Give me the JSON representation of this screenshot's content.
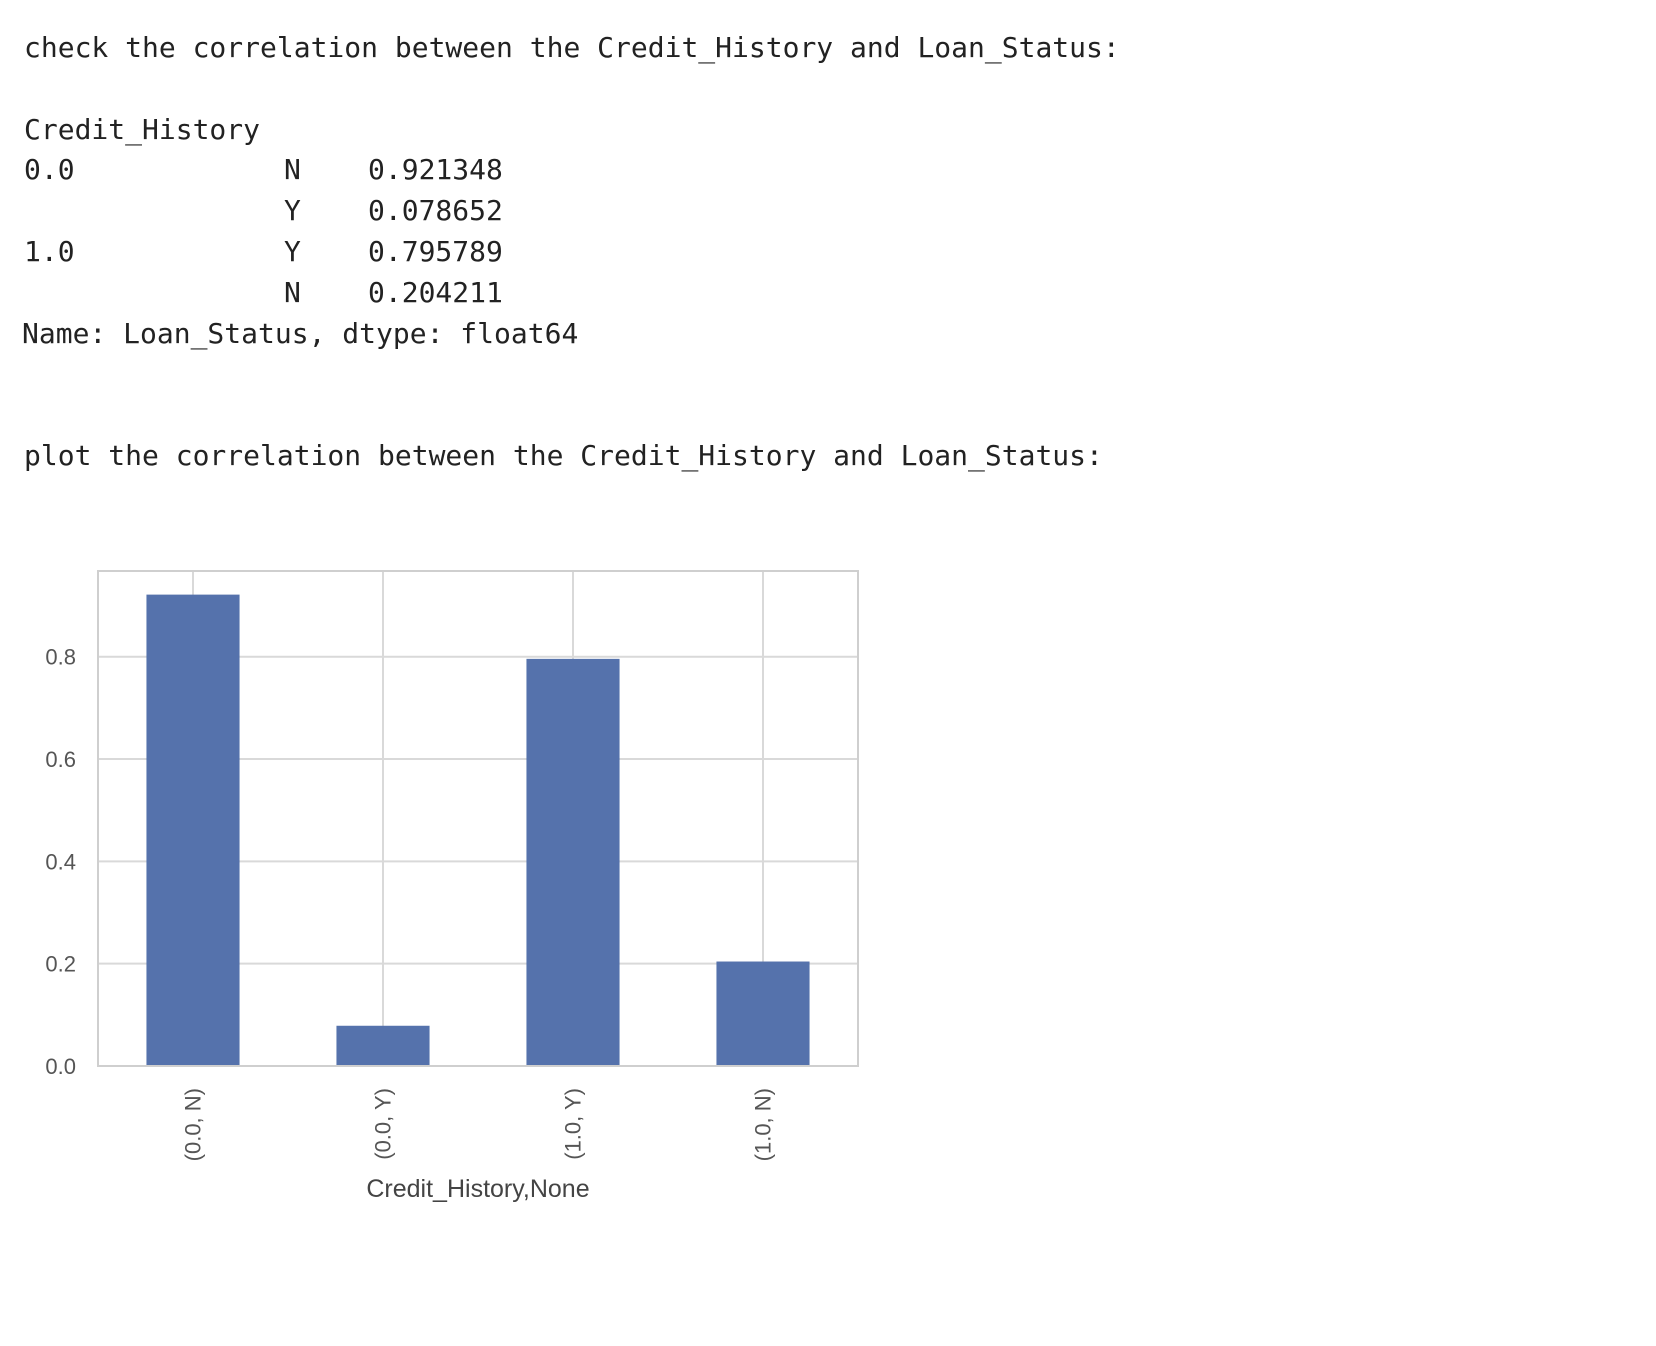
{
  "output": {
    "check_heading": "check the correlation between the Credit_History and Loan_Status:",
    "index_name": "Credit_History",
    "rows": [
      {
        "group": "0.0",
        "key": "N",
        "value": "0.921348"
      },
      {
        "group": "",
        "key": "Y",
        "value": "0.078652"
      },
      {
        "group": "1.0",
        "key": "Y",
        "value": "0.795789"
      },
      {
        "group": "",
        "key": "N",
        "value": "0.204211"
      }
    ],
    "series_footer": "Name: Loan_Status, dtype: float64",
    "plot_heading": "plot the correlation between the Credit_History and Loan_Status:"
  },
  "chart_data": {
    "type": "bar",
    "categories": [
      "(0.0, N)",
      "(0.0, Y)",
      "(1.0, Y)",
      "(1.0, N)"
    ],
    "values": [
      0.921348,
      0.078652,
      0.795789,
      0.204211
    ],
    "xlabel": "Credit_History,None",
    "ylabel": "",
    "ylim": [
      0,
      0.9675
    ],
    "yticks": [
      "0.0",
      "0.2",
      "0.4",
      "0.6",
      "0.8"
    ],
    "grid": true,
    "colors": {
      "bar": "#5572ac",
      "grid": "#d9d9d9",
      "frame": "#cfcfcf"
    }
  }
}
